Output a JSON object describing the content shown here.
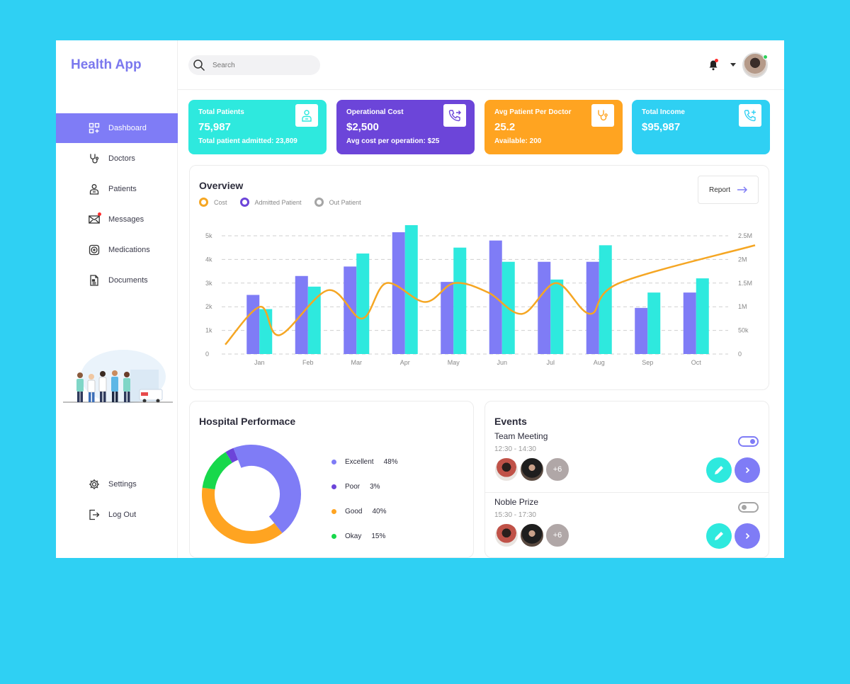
{
  "app": {
    "title": "Health App"
  },
  "sidebar": {
    "items": [
      {
        "label": "Dashboard",
        "icon": "dashboard-icon",
        "active": true
      },
      {
        "label": "Doctors",
        "icon": "stethoscope-icon"
      },
      {
        "label": "Patients",
        "icon": "patient-icon"
      },
      {
        "label": "Messages",
        "icon": "mail-icon"
      },
      {
        "label": "Medications",
        "icon": "medication-icon"
      },
      {
        "label": "Documents",
        "icon": "document-icon"
      }
    ],
    "bottom": [
      {
        "label": "Settings",
        "icon": "gear-icon"
      },
      {
        "label": "Log Out",
        "icon": "logout-icon"
      }
    ]
  },
  "header": {
    "search_placeholder": "Search"
  },
  "cards": [
    {
      "label": "Total Patients",
      "value": "75,987",
      "sub": "Total patient admitted: 23,809",
      "color": "#2ee9de",
      "icon": "patient-card-icon"
    },
    {
      "label": "Operational Cost",
      "value": "$2,500",
      "sub": "Avg cost per operation: $25",
      "color": "#6c45d9",
      "icon": "phone-forward-icon"
    },
    {
      "label": "Avg Patient Per Doctor",
      "value": "25.2",
      "sub": "Available: 200",
      "color": "#ffa421",
      "icon": "stethoscope-card-icon"
    },
    {
      "label": "Total Income",
      "value": "$95,987",
      "sub": "",
      "color": "#2fd0f3",
      "icon": "phone-plus-icon"
    }
  ],
  "overview": {
    "title": "Overview",
    "report_label": "Report",
    "legend": [
      {
        "label": "Cost",
        "color": "#f5a623"
      },
      {
        "label": "Admitted Patient",
        "color": "#6c45d9"
      },
      {
        "label": "Out Patient",
        "color": "#a5a5a5"
      }
    ]
  },
  "chart_data": {
    "type": "bar",
    "categories": [
      "Jan",
      "Feb",
      "Mar",
      "Apr",
      "May",
      "Jun",
      "Jul",
      "Aug",
      "Sep",
      "Oct"
    ],
    "series": [
      {
        "values": [
          2500,
          3300,
          3700,
          5150,
          3050,
          4800,
          3900,
          3900,
          1950,
          2600
        ],
        "color": "#7f7cf6"
      },
      {
        "values": [
          1900,
          2850,
          4250,
          5450,
          4500,
          3900,
          3150,
          4600,
          2600,
          3200
        ],
        "color": "#2ee9de"
      },
      {
        "type": "line",
        "axis": "right",
        "values": [
          200000,
          1000000,
          400000,
          1350000,
          750000,
          1500000,
          1100000,
          1500000,
          1300000,
          850000,
          1500000,
          850000,
          1500000,
          2300000
        ],
        "x": [
          0,
          0.6,
          1,
          2,
          2.7,
          3.2,
          4,
          4.6,
          5.3,
          6,
          6.7,
          7.4,
          8,
          9.5
        ],
        "color": "#f5a623"
      }
    ],
    "y_ticks_left": [
      "0",
      "1k",
      "2k",
      "3k",
      "4k",
      "5k"
    ],
    "y_ticks_right": [
      "0",
      "50k",
      "1M",
      "1.5M",
      "2M",
      "2.5M"
    ],
    "ylim": [
      0,
      5000
    ],
    "y2lim": [
      0,
      2500000
    ],
    "grid": true
  },
  "performance": {
    "title": "Hospital Performace",
    "items": [
      {
        "label": "Excellent",
        "value": "48%",
        "pct": 48,
        "color": "#7f7cf6"
      },
      {
        "label": "Poor",
        "value": "3%",
        "pct": 3,
        "color": "#6c45d9"
      },
      {
        "label": "Good",
        "value": "40%",
        "pct": 40,
        "color": "#ffa421"
      },
      {
        "label": "Okay",
        "value": "15%",
        "pct": 15,
        "color": "#17d84b"
      }
    ]
  },
  "events": {
    "title": "Events",
    "items": [
      {
        "title": "Team Meeting",
        "time": "12:30 - 14:30",
        "more": "+6",
        "enabled": true
      },
      {
        "title": "Noble Prize",
        "time": "15:30 - 17:30",
        "more": "+6",
        "enabled": false
      }
    ]
  }
}
